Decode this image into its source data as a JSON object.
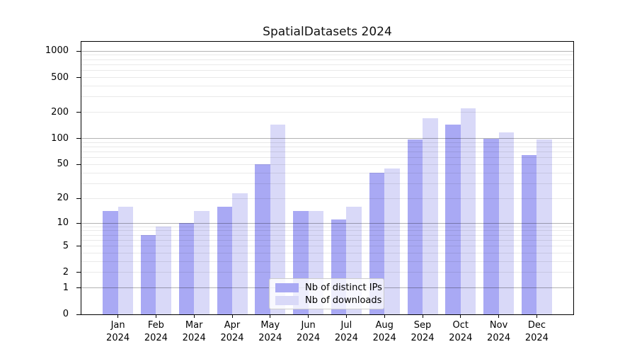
{
  "chart_data": {
    "type": "bar",
    "title": "SpatialDatasets 2024",
    "categories": [
      "Jan",
      "Feb",
      "Mar",
      "Apr",
      "May",
      "Jun",
      "Jul",
      "Aug",
      "Sep",
      "Oct",
      "Nov",
      "Dec"
    ],
    "x_year": "2024",
    "series": [
      {
        "name": "Nb of distinct IPs",
        "color": "#a9a9f4",
        "values": [
          14,
          7,
          10,
          16,
          50,
          14,
          11,
          40,
          97,
          145,
          100,
          64
        ]
      },
      {
        "name": "Nb of downloads",
        "color": "#d9d9f8",
        "values": [
          16,
          9,
          14,
          23,
          146,
          14,
          16,
          45,
          170,
          222,
          118,
          97
        ]
      }
    ],
    "yscale": "symlog-log10(1+v)",
    "y_ticks": [
      0,
      1,
      2,
      5,
      10,
      20,
      50,
      100,
      200,
      500,
      1000
    ],
    "y_tick_labels": [
      "0",
      "1",
      "2",
      "5",
      "10",
      "20",
      "50",
      "100",
      "200",
      "500",
      "1000"
    ],
    "ylim": [
      0,
      1280
    ],
    "xlabel": "",
    "ylabel": "",
    "grid": "horizontal major+minor",
    "legend_position": "lower center"
  },
  "colors": {
    "background": "#ffffff",
    "spine": "#000000",
    "grid_major": "#b3b3b3",
    "grid_minor": "#ececec",
    "bar_ips": "#a9a9f4",
    "bar_downloads": "#d9d9f8"
  }
}
